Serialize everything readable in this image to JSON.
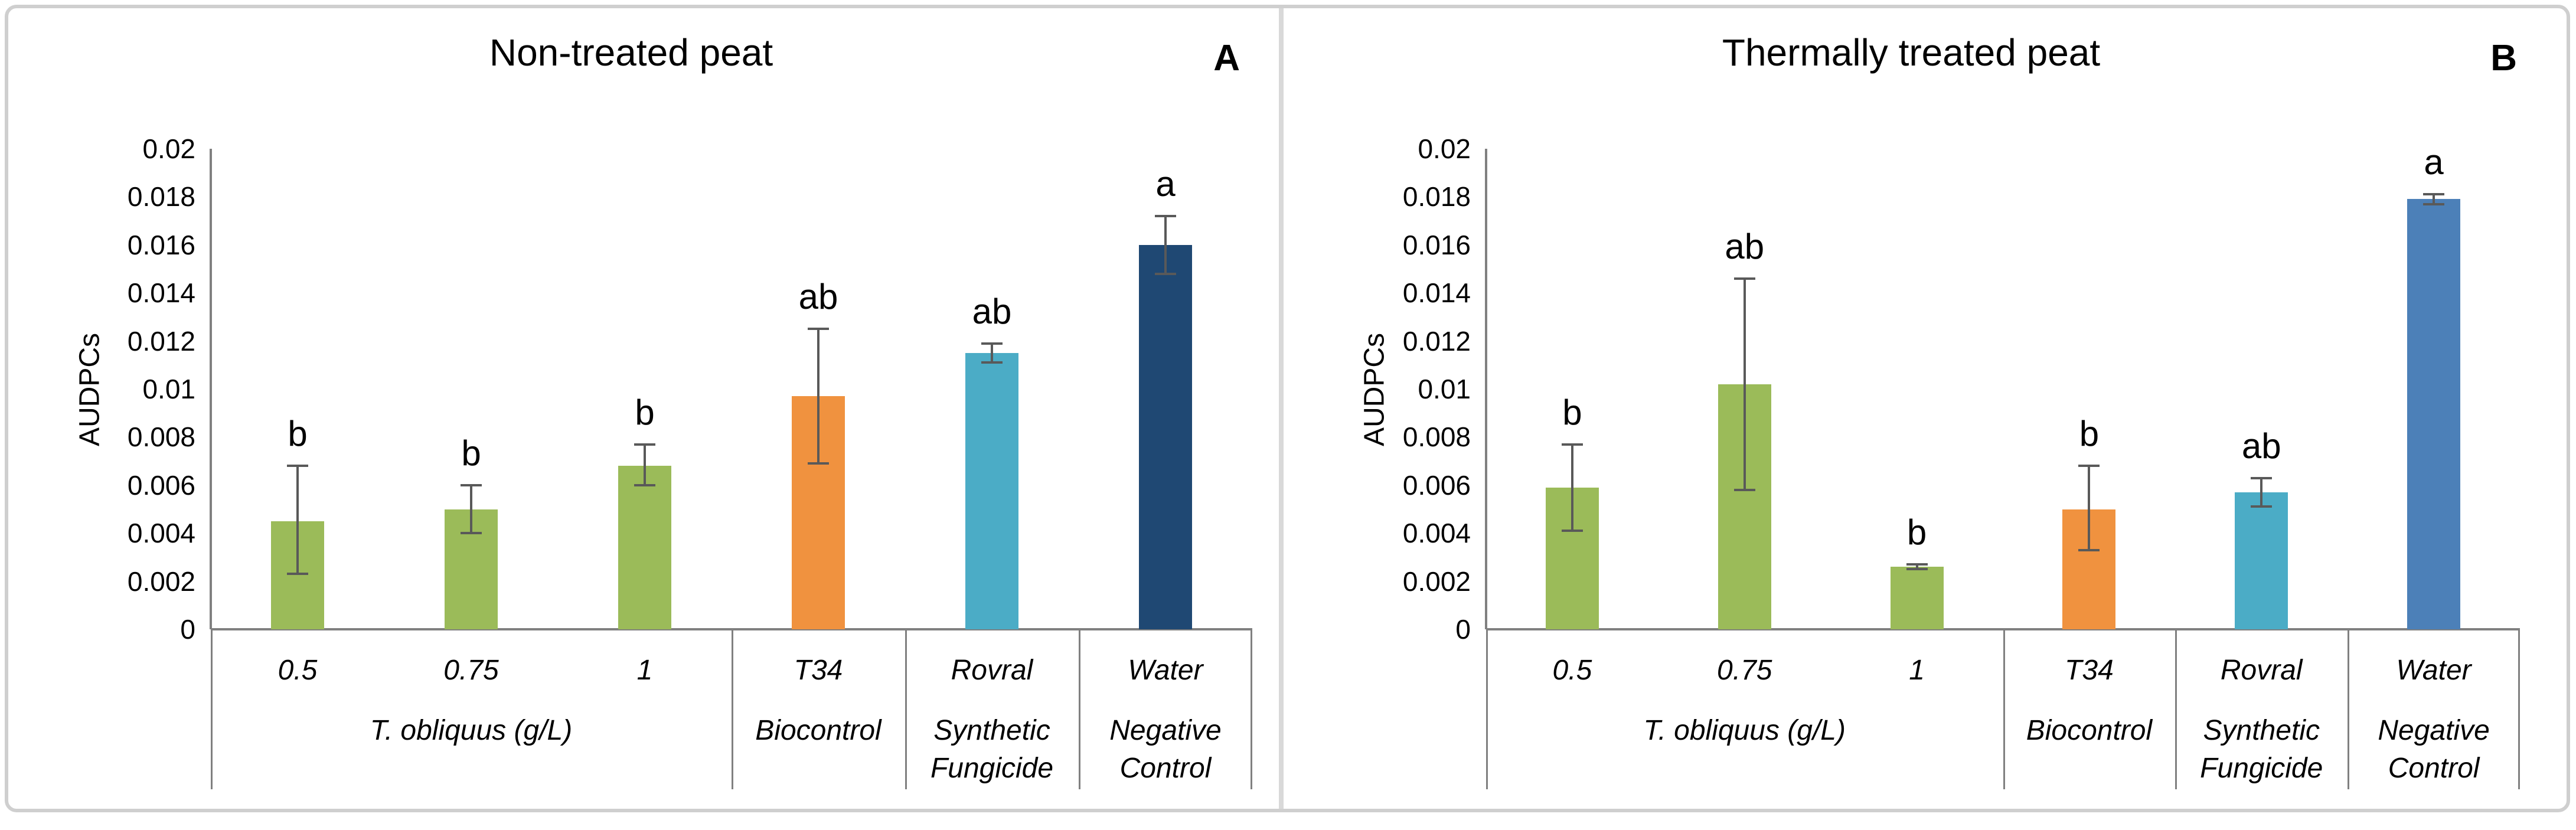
{
  "figure": {
    "border_color": "#cfcfcf",
    "divider_color": "#d9d9d9",
    "background": "#ffffff"
  },
  "colors": {
    "green": "#9BBB59",
    "orange": "#F0923F",
    "teal": "#4BACC6",
    "navy": "#1F4873",
    "blue": "#4C80B8",
    "axis_line": "#808080",
    "error_bar": "#595959",
    "text": "#000000"
  },
  "y_axis": {
    "label": "AUDPCs",
    "tick_labels": [
      "0.02",
      "0.018",
      "0.016",
      "0.014",
      "0.012",
      "0.01",
      "0.008",
      "0.006",
      "0.004",
      "0.002",
      "0"
    ],
    "min": 0,
    "max": 0.02
  },
  "chart_data": [
    {
      "type": "bar",
      "panel_label": "A",
      "title": "Non-treated peat",
      "ylabel": "AUDPCs",
      "ylim": [
        0,
        0.02
      ],
      "grid": false,
      "legend": false,
      "categories": [
        "0.5",
        "0.75",
        "1",
        "T34",
        "Rovral",
        "Water"
      ],
      "values": [
        0.0045,
        0.005,
        0.0068,
        0.0097,
        0.0115,
        0.016
      ],
      "error_low": [
        0.0023,
        0.004,
        0.006,
        0.0069,
        0.0111,
        0.0148
      ],
      "error_high": [
        0.0068,
        0.006,
        0.0077,
        0.0125,
        0.0119,
        0.0172
      ],
      "sig_letters": [
        "b",
        "b",
        "b",
        "ab",
        "ab",
        "a"
      ],
      "bar_colors": [
        "green",
        "green",
        "green",
        "orange",
        "teal",
        "navy"
      ],
      "groups": [
        {
          "label": "T. obliquus (g/L)",
          "span": 3
        },
        {
          "label": "Biocontrol",
          "span": 1
        },
        {
          "label": "Synthetic\nFungicide",
          "span": 1
        },
        {
          "label": "Negative\nControl",
          "span": 1
        }
      ]
    },
    {
      "type": "bar",
      "panel_label": "B",
      "title": "Thermally treated peat",
      "ylabel": "AUDPCs",
      "ylim": [
        0,
        0.02
      ],
      "grid": false,
      "legend": false,
      "categories": [
        "0.5",
        "0.75",
        "1",
        "T34",
        "Rovral",
        "Water"
      ],
      "values": [
        0.0059,
        0.0102,
        0.0026,
        0.005,
        0.0057,
        0.0179
      ],
      "error_low": [
        0.0041,
        0.0058,
        0.0025,
        0.0033,
        0.0051,
        0.0177
      ],
      "error_high": [
        0.0077,
        0.0146,
        0.0027,
        0.0068,
        0.0063,
        0.0181
      ],
      "sig_letters": [
        "b",
        "ab",
        "b",
        "b",
        "ab",
        "a"
      ],
      "bar_colors": [
        "green",
        "green",
        "green",
        "orange",
        "teal",
        "blue"
      ],
      "groups": [
        {
          "label": "T. obliquus (g/L)",
          "span": 3
        },
        {
          "label": "Biocontrol",
          "span": 1
        },
        {
          "label": "Synthetic\nFungicide",
          "span": 1
        },
        {
          "label": "Negative\nControl",
          "span": 1
        }
      ]
    }
  ]
}
